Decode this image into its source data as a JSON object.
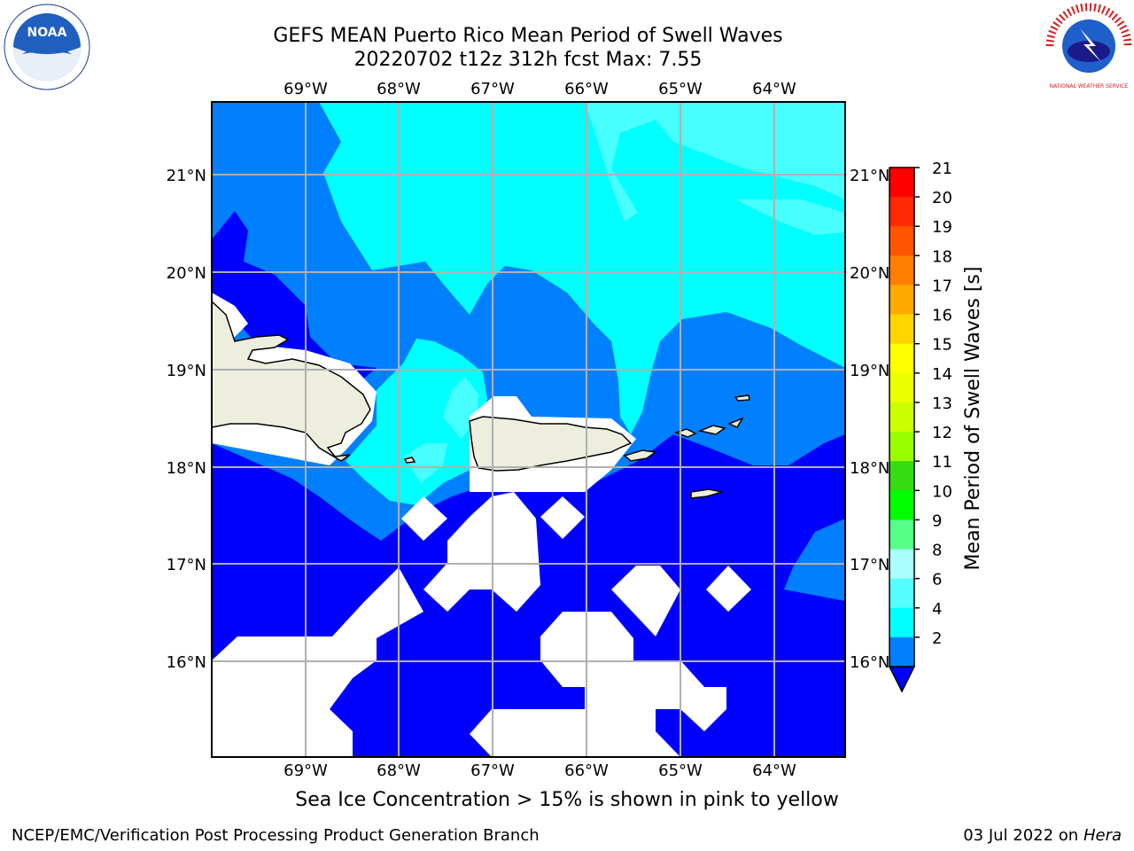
{
  "header": {
    "title_line1": "GEFS MEAN Puerto Rico Mean Period of Swell Waves",
    "title_line2": "20220702 t12z 312h fcst   Max: 7.55"
  },
  "logos": {
    "left": "noaa-logo",
    "left_text": "NOAA",
    "right": "nws-logo",
    "right_text": "NATIONAL WEATHER SERVICE"
  },
  "map": {
    "lon_labels": [
      "69°W",
      "68°W",
      "67°W",
      "66°W",
      "65°W",
      "64°W"
    ],
    "lat_labels": [
      "21°N",
      "20°N",
      "19°N",
      "18°N",
      "17°N",
      "16°N"
    ],
    "colors": {
      "land": "#eeeede",
      "missing": "#ffffff",
      "band_2_4": "#0000ff",
      "band_4_6": "#0080ff",
      "band_6_8": "#00ffff",
      "band_8_9": "#48ffff",
      "grid": "#b0b0b0"
    }
  },
  "colorbar": {
    "label": "Mean Period of Swell Waves [s]",
    "ticks": [
      "21",
      "20",
      "19",
      "18",
      "17",
      "16",
      "15",
      "14",
      "13",
      "12",
      "11",
      "10",
      "9",
      "8",
      "6",
      "4",
      "2"
    ],
    "colors": [
      "#ff0000",
      "#ff2a00",
      "#ff5500",
      "#ff8000",
      "#ffaa00",
      "#ffd500",
      "#ffff00",
      "#eeff00",
      "#ccff00",
      "#99ff00",
      "#33dd11",
      "#00ff00",
      "#55ff88",
      "#aaffff",
      "#55ffff",
      "#00ffff",
      "#0080ff",
      "#0000ff"
    ]
  },
  "footer": {
    "note": "Sea Ice Concentration > 15% is shown in pink to yellow",
    "left": "NCEP/EMC/Verification Post Processing Product Generation Branch",
    "right_date": "03 Jul 2022 on",
    "right_host": "Hera"
  }
}
